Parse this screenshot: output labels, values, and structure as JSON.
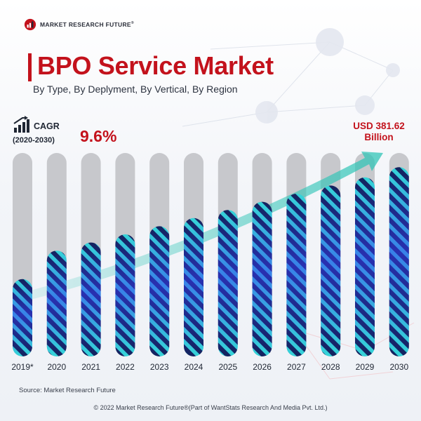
{
  "header": {
    "logo_text": "MARKET RESEARCH FUTURE",
    "logo_mark": "®",
    "title": "BPO Service Market",
    "subtitle": "By Type, By Deplyment, By Vertical, By Region"
  },
  "cagr": {
    "label": "CAGR",
    "years": "(2020-2030)",
    "value": "9.6%",
    "icon": "growth-bars-icon"
  },
  "callout": {
    "line1": "USD 381.62",
    "line2": "Billion"
  },
  "chart_data": {
    "type": "bar",
    "title": "BPO Service Market",
    "categories": [
      "2019*",
      "2020",
      "2021",
      "2022",
      "2023",
      "2024",
      "2025",
      "2026",
      "2027",
      "2028",
      "2029",
      "2030"
    ],
    "series": [
      {
        "values": [
          0.38,
          0.52,
          0.56,
          0.6,
          0.64,
          0.68,
          0.72,
          0.76,
          0.8,
          0.84,
          0.88,
          0.93
        ]
      }
    ],
    "value_unit": "fraction of the bar track filled",
    "annotation": "USD 381.62 Billion",
    "colors": {
      "track": "#c7c8cc",
      "stripe_dark": "#13235e",
      "stripe_light": "#36d4d8",
      "stripe_glow": "#3a3cf5",
      "arrow": "#2ec4b6",
      "accent": "#c3121c"
    }
  },
  "source": "Source: Market Research Future",
  "footer": "© 2022 Market Research Future®(Part of WantStats Research And Media Pvt. Ltd.)"
}
